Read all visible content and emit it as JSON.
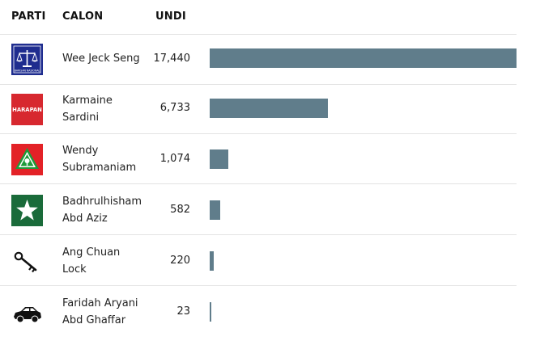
{
  "headers": {
    "party": "PARTI",
    "candidate": "CALON",
    "votes": "UNDI"
  },
  "accent": "#607d8b",
  "max_votes": 17440,
  "rows": [
    {
      "party_icon": "barisan-nasional-logo",
      "party_text": "BARISAN NASIONAL",
      "name_lines": [
        "Wee Jeck Seng"
      ],
      "votes": "17,440",
      "value": 17440
    },
    {
      "party_icon": "pakatan-harapan-logo",
      "party_text": "HARAPAN",
      "name_lines": [
        "Karmaine",
        "Sardini"
      ],
      "votes": "6,733",
      "value": 6733
    },
    {
      "party_icon": "pas-logo",
      "party_text": "",
      "name_lines": [
        "Wendy",
        "Subramaniam"
      ],
      "votes": "1,074",
      "value": 1074
    },
    {
      "party_icon": "star-logo",
      "party_text": "",
      "name_lines": [
        "Badhrulhisham",
        "Abd Aziz"
      ],
      "votes": "582",
      "value": 582
    },
    {
      "party_icon": "key-icon",
      "party_text": "",
      "name_lines": [
        "Ang Chuan",
        "Lock"
      ],
      "votes": "220",
      "value": 220
    },
    {
      "party_icon": "car-icon",
      "party_text": "",
      "name_lines": [
        "Faridah Aryani",
        "Abd Ghaffar"
      ],
      "votes": "23",
      "value": 23
    }
  ]
}
